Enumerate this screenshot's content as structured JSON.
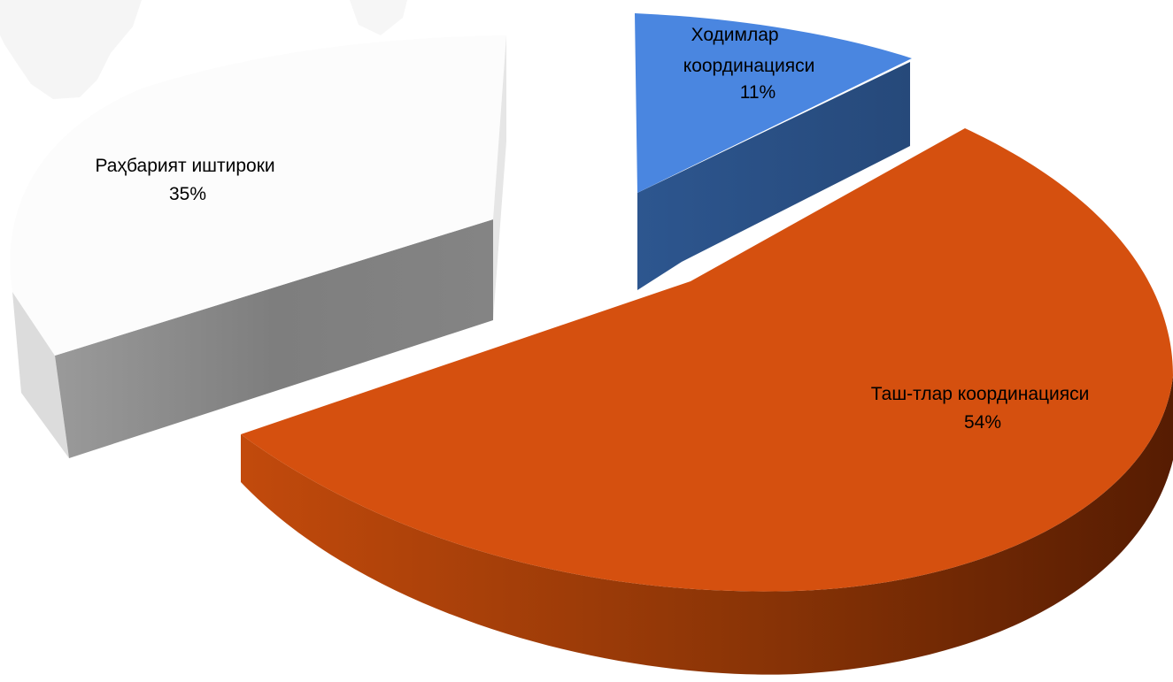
{
  "chart_data": {
    "type": "pie",
    "style": "3d-exploded",
    "legend": "none",
    "slices": [
      {
        "label": "Ходимлар координацияси",
        "label_lines": [
          "Ходимлар",
          "координацияси"
        ],
        "value": 11,
        "value_label": "11%",
        "color": "#4A86E0",
        "side_color": "#2C528C"
      },
      {
        "label": "Таш-тлар координацияси",
        "label_lines": [
          "Таш-тлар координацияси"
        ],
        "value": 54,
        "value_label": "54%",
        "color": "#D5500F",
        "side_color": "#A83E08"
      },
      {
        "label": "Раҳбарият иштироки",
        "label_lines": [
          "Раҳбарият иштироки"
        ],
        "value": 35,
        "value_label": "35%",
        "color": "#FDFDFD",
        "side_color": "#8A8A8A"
      }
    ]
  }
}
